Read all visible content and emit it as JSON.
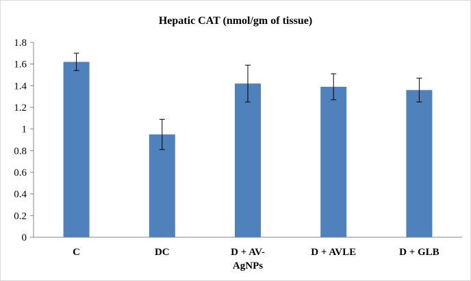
{
  "chart_data": {
    "type": "bar",
    "title": "Hepatic CAT (nmol/gm of tissue)",
    "xlabel": "",
    "ylabel": "",
    "ylim": [
      0,
      1.8
    ],
    "yticks": [
      "0",
      "0.2",
      "0.4",
      "0.6",
      "0.8",
      "1",
      "1.2",
      "1.4",
      "1.6",
      "1.8"
    ],
    "categories": [
      "C",
      "DC",
      "D + AV-AgNPs",
      "D + AVLE",
      "D + GLB"
    ],
    "category_lines": [
      [
        "C"
      ],
      [
        "DC"
      ],
      [
        "D + AV-",
        "AgNPs"
      ],
      [
        "D + AVLE"
      ],
      [
        "D + GLB"
      ]
    ],
    "values": [
      1.62,
      0.95,
      1.42,
      1.39,
      1.36
    ],
    "errors": [
      0.08,
      0.14,
      0.17,
      0.12,
      0.11
    ],
    "grid": false,
    "legend": "none",
    "bar_color": "#4f81bd",
    "error_color": "#000000"
  }
}
